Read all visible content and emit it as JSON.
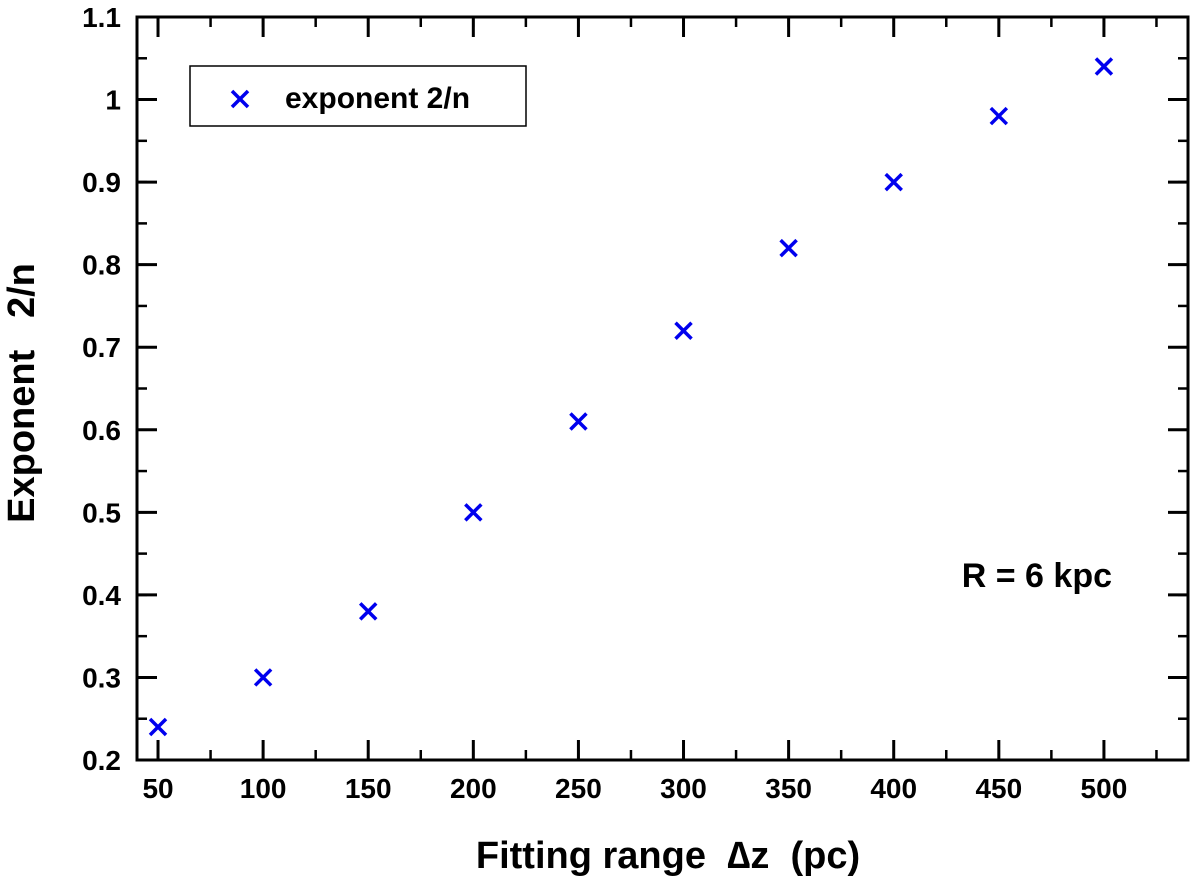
{
  "chart_data": {
    "type": "scatter",
    "title": "",
    "xlabel": "Fitting range  ∆z  (pc)",
    "ylabel": "Exponent   2/n",
    "xlim": [
      40,
      540
    ],
    "ylim": [
      0.2,
      1.1
    ],
    "x_ticks": [
      50,
      100,
      150,
      200,
      250,
      300,
      350,
      400,
      450,
      500
    ],
    "y_ticks": [
      0.2,
      0.3,
      0.4,
      0.5,
      0.6,
      0.7,
      0.8,
      0.9,
      1,
      1.1
    ],
    "x_minor_step": 25,
    "y_minor_step": 0.05,
    "grid": false,
    "legend_position": "top-left",
    "series": [
      {
        "name": "exponent 2/n",
        "marker": "x",
        "color": "#0000ee",
        "x": [
          50,
          100,
          150,
          200,
          250,
          300,
          350,
          400,
          450,
          500
        ],
        "y": [
          0.24,
          0.3,
          0.38,
          0.5,
          0.61,
          0.72,
          0.82,
          0.9,
          0.98,
          1.04
        ]
      }
    ],
    "annotations": [
      "R = 6 kpc"
    ]
  }
}
